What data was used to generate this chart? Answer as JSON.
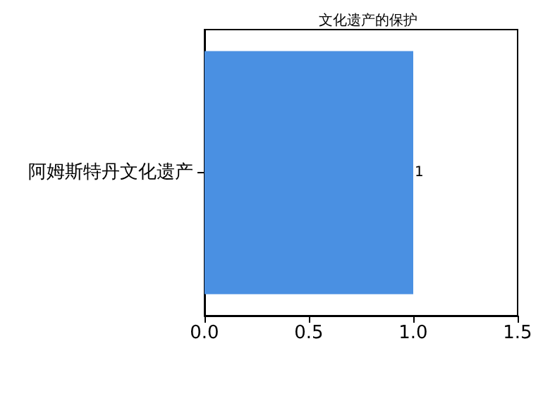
{
  "chart_data": {
    "type": "bar",
    "orientation": "horizontal",
    "title": "文化遗产的保护",
    "categories": [
      "阿姆斯特丹文化遗产"
    ],
    "values": [
      1
    ],
    "color": "#4a90e2",
    "data_labels": true,
    "xlim": [
      0,
      1.5
    ],
    "xticks": [
      {
        "value": 0,
        "label": "0.0"
      },
      {
        "value": 0.5,
        "label": "0.5"
      },
      {
        "value": 1,
        "label": "1.0"
      },
      {
        "value": 1.5,
        "label": "1.5"
      }
    ],
    "grid": false
  }
}
